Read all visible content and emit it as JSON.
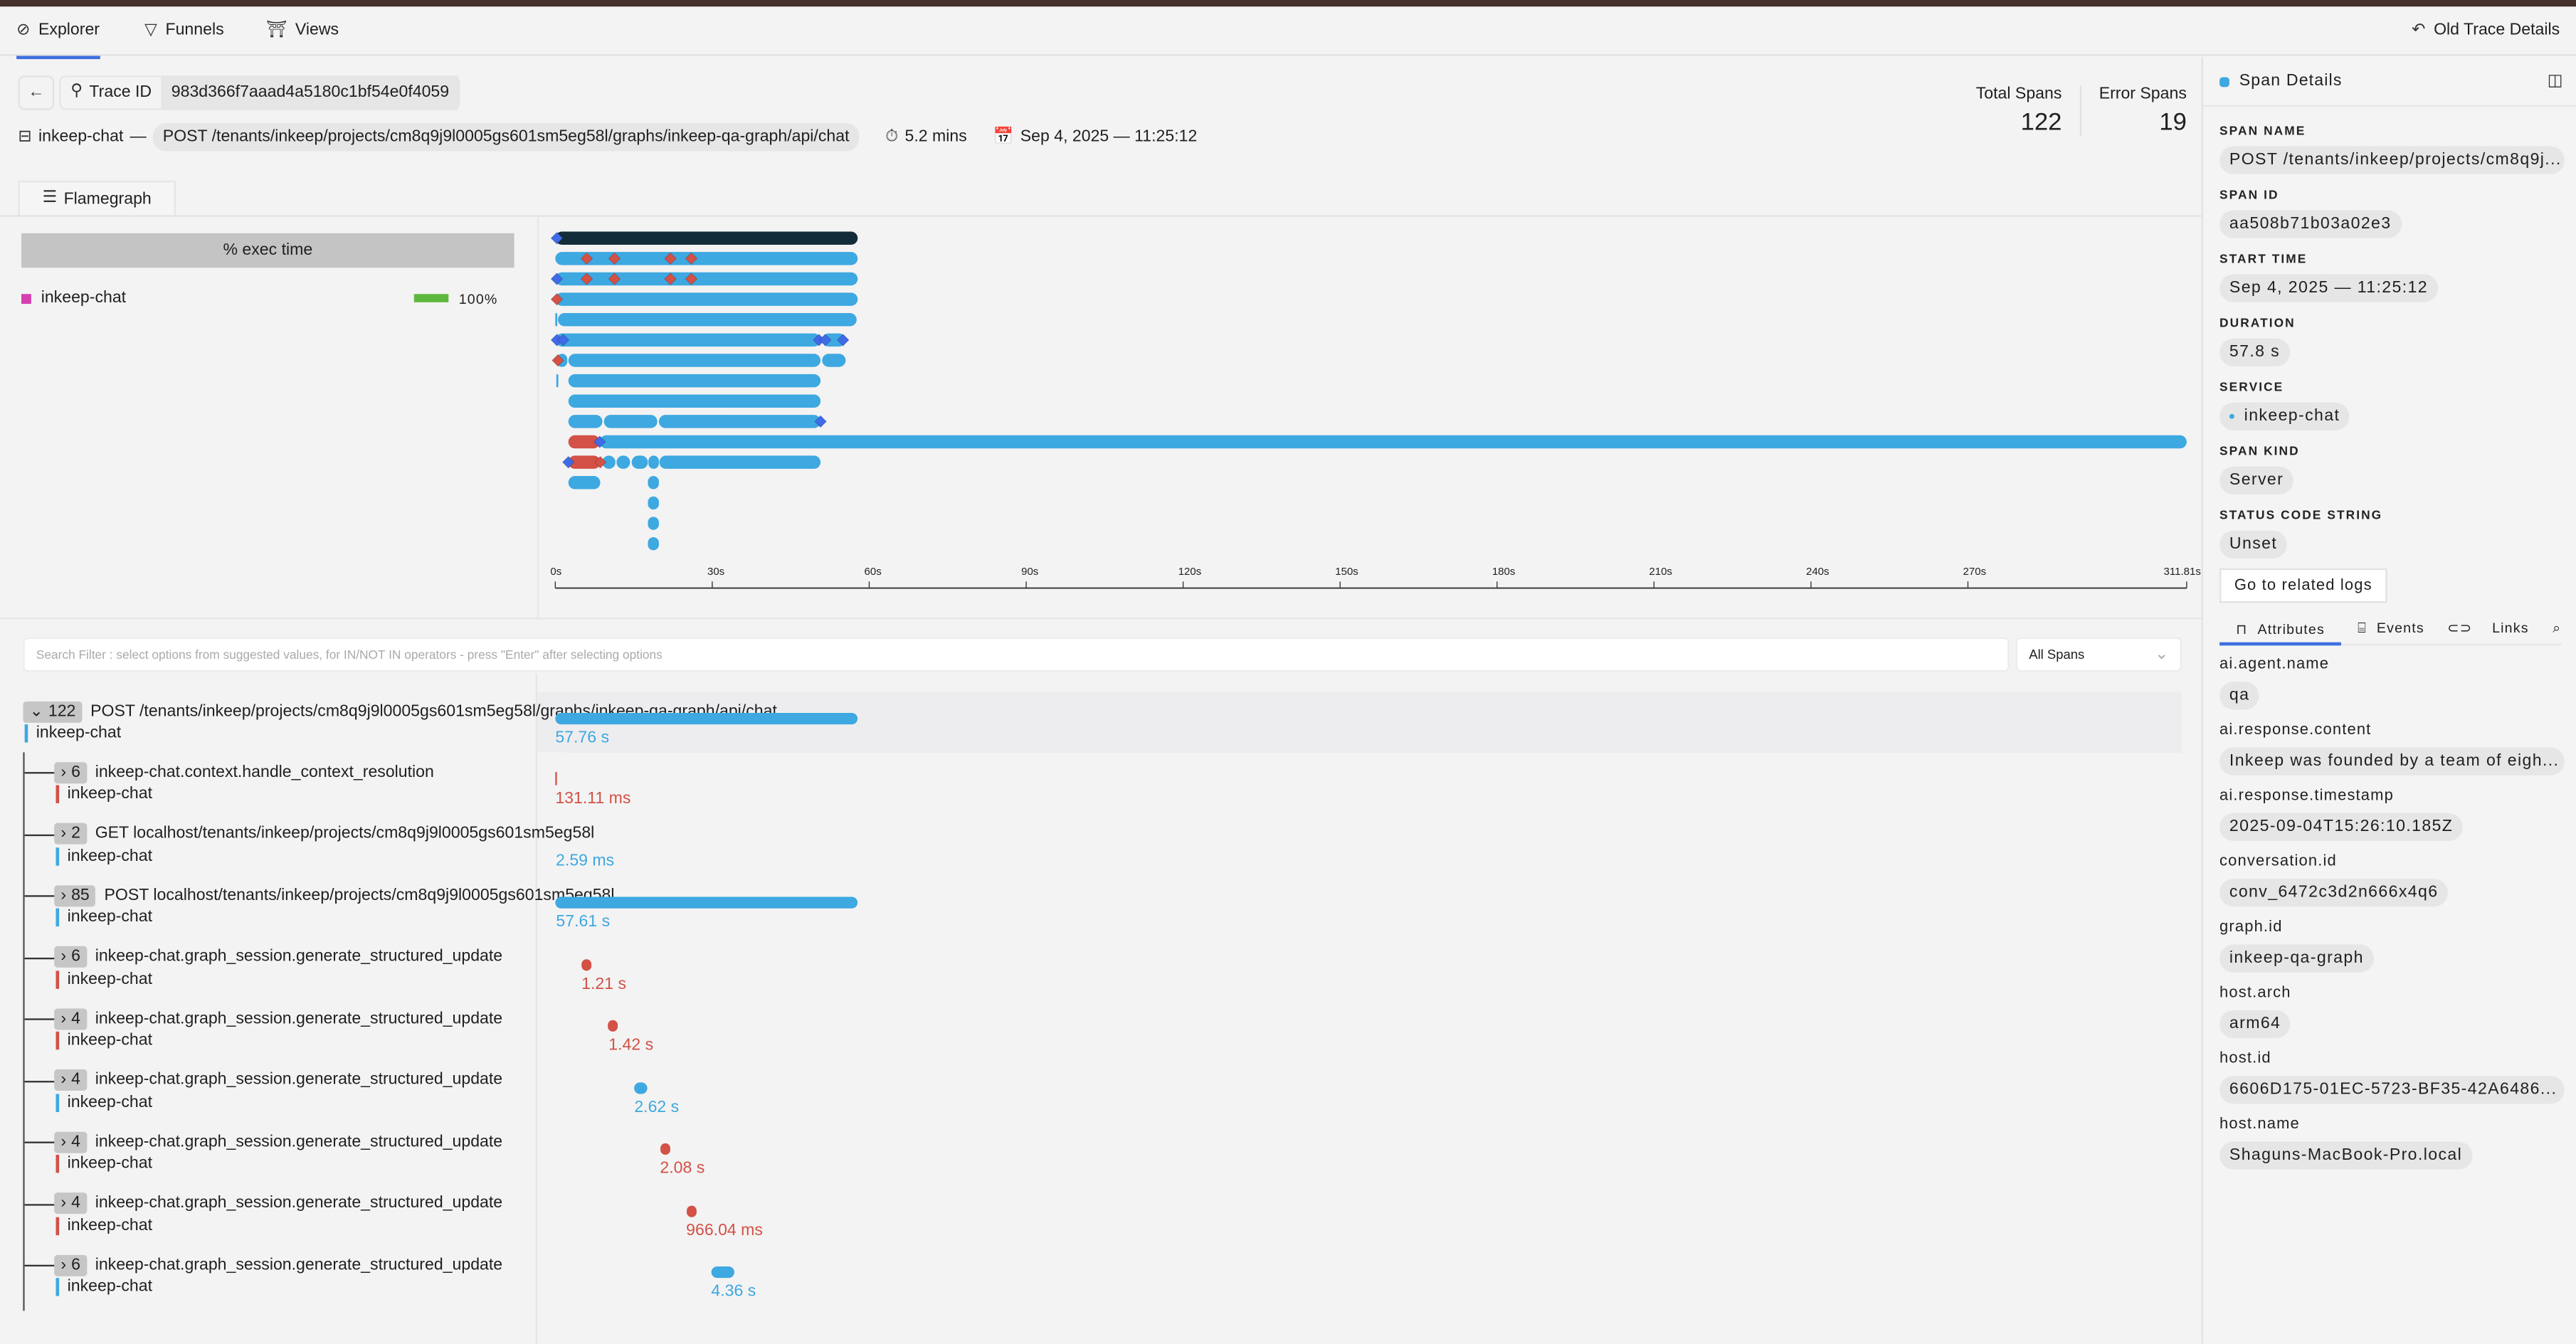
{
  "nav": {
    "tabs": [
      {
        "label": "Explorer",
        "icon": "compass-icon"
      },
      {
        "label": "Funnels",
        "icon": "funnel-icon"
      },
      {
        "label": "Views",
        "icon": "views-icon"
      }
    ],
    "old_trace": "Old Trace Details"
  },
  "trace": {
    "id_label": "Trace ID",
    "id": "983d366f7aaad4a5180c1bf54e0f4059",
    "service": "inkeep-chat",
    "separator": "—",
    "endpoint": "POST /tenants/inkeep/projects/cm8q9j9l0005gs601sm5eg58l/graphs/inkeep-qa-graph/api/chat",
    "duration": "5.2 mins",
    "timestamp": "Sep 4, 2025 — 11:25:12"
  },
  "stats": {
    "total_label": "Total Spans",
    "total": "122",
    "error_label": "Error Spans",
    "error": "19"
  },
  "flame_tab": "Flamegraph",
  "exec": {
    "header": "% exec time",
    "service": "inkeep-chat",
    "percent": "100%",
    "fraction": 1.0,
    "service_color": "#d63fb0",
    "bar_color": "#5cb83c"
  },
  "colors": {
    "blue": "#3ea8e0",
    "red": "#d35146",
    "dark": "#132c3a",
    "accent": "#3f6fe0",
    "event_blue": "#3f6ae8"
  },
  "flamegraph": {
    "x_unit": "s",
    "xlim": [
      0,
      311.81
    ],
    "ticks": [
      "0s",
      "30s",
      "60s",
      "90s",
      "120s",
      "150s",
      "180s",
      "210s",
      "240s",
      "270s",
      "311.81s"
    ],
    "tick_values": [
      0,
      30,
      60,
      90,
      120,
      150,
      180,
      210,
      240,
      270,
      311.81
    ],
    "rows": [
      {
        "bars": [
          {
            "s": 0,
            "e": 57.8,
            "c": "dark"
          }
        ],
        "events": [
          {
            "t": 0.3,
            "c": "event_blue"
          }
        ]
      },
      {
        "bars": [
          {
            "s": 0,
            "e": 57.8,
            "c": "blue"
          }
        ],
        "events": [
          {
            "t": 6,
            "c": "red"
          },
          {
            "t": 11.3,
            "c": "red"
          },
          {
            "t": 22,
            "c": "red"
          },
          {
            "t": 26,
            "c": "red"
          }
        ]
      },
      {
        "bars": [
          {
            "s": 0,
            "e": 57.8,
            "c": "blue"
          }
        ],
        "events": [
          {
            "t": 0.3,
            "c": "event_blue"
          },
          {
            "t": 6,
            "c": "red"
          },
          {
            "t": 11.3,
            "c": "red"
          },
          {
            "t": 22,
            "c": "red"
          },
          {
            "t": 26,
            "c": "red"
          }
        ]
      },
      {
        "bars": [
          {
            "s": 0,
            "e": 57.8,
            "c": "blue"
          }
        ],
        "events": [
          {
            "t": 0.3,
            "c": "red"
          }
        ]
      },
      {
        "bars": [
          {
            "s": 0,
            "e": 0.3,
            "c": "blue"
          },
          {
            "s": 0.5,
            "e": 57.6,
            "c": "blue"
          }
        ],
        "events": []
      },
      {
        "bars": [
          {
            "s": 0,
            "e": 50.7,
            "c": "blue"
          },
          {
            "s": 51,
            "e": 55.5,
            "c": "blue"
          }
        ],
        "events": [
          {
            "t": 0.3,
            "c": "event_blue"
          },
          {
            "t": 1.5,
            "c": "event_blue"
          },
          {
            "t": 50.4,
            "c": "event_blue"
          },
          {
            "t": 51.6,
            "c": "event_blue"
          },
          {
            "t": 55,
            "c": "event_blue"
          }
        ]
      },
      {
        "bars": [
          {
            "s": 0.3,
            "e": 2.3,
            "c": "blue"
          },
          {
            "s": 2.5,
            "e": 50.7,
            "c": "blue"
          },
          {
            "s": 51,
            "e": 55.5,
            "c": "blue"
          }
        ],
        "events": [
          {
            "t": 0.5,
            "c": "red"
          }
        ]
      },
      {
        "bars": [
          {
            "s": 0.2,
            "e": 0.5,
            "c": "blue"
          },
          {
            "s": 2.5,
            "e": 50.7,
            "c": "blue"
          }
        ],
        "events": []
      },
      {
        "bars": [
          {
            "s": 2.5,
            "e": 50.7,
            "c": "blue"
          }
        ],
        "events": []
      },
      {
        "bars": [
          {
            "s": 2.5,
            "e": 9,
            "c": "blue"
          },
          {
            "s": 9.3,
            "e": 19.5,
            "c": "blue"
          },
          {
            "s": 19.8,
            "e": 50.7,
            "c": "blue"
          }
        ],
        "events": [
          {
            "t": 50.7,
            "c": "event_blue"
          }
        ]
      },
      {
        "bars": [
          {
            "s": 8.5,
            "e": 311.81,
            "c": "blue"
          },
          {
            "s": 2.5,
            "e": 8.5,
            "c": "red"
          }
        ],
        "events": [
          {
            "t": 8.5,
            "c": "event_blue"
          }
        ]
      },
      {
        "bars": [
          {
            "s": 2.5,
            "e": 8.6,
            "c": "red"
          },
          {
            "s": 9,
            "e": 11.5,
            "c": "blue"
          },
          {
            "s": 11.7,
            "e": 14.3,
            "c": "blue"
          },
          {
            "s": 14.6,
            "e": 17.7,
            "c": "blue"
          },
          {
            "s": 17.8,
            "e": 19.8,
            "c": "blue"
          },
          {
            "s": 19.9,
            "e": 50.7,
            "c": "blue"
          }
        ],
        "events": [
          {
            "t": 2.5,
            "c": "event_blue"
          },
          {
            "t": 8.6,
            "c": "red"
          }
        ]
      },
      {
        "bars": [
          {
            "s": 2.5,
            "e": 8.6,
            "c": "blue"
          },
          {
            "s": 17.7,
            "e": 19.8,
            "c": "blue"
          }
        ],
        "events": []
      },
      {
        "bars": [
          {
            "s": 17.7,
            "e": 19.8,
            "c": "blue"
          }
        ],
        "events": []
      },
      {
        "bars": [
          {
            "s": 17.7,
            "e": 19.8,
            "c": "blue"
          }
        ],
        "events": []
      },
      {
        "bars": [
          {
            "s": 17.7,
            "e": 19.8,
            "c": "blue"
          }
        ],
        "events": []
      }
    ]
  },
  "filter": {
    "placeholder": "Search Filter : select options from suggested values, for IN/NOT IN operators - press \"Enter\" after selecting options",
    "select": "All Spans"
  },
  "tree": [
    {
      "count": "122",
      "expanded": true,
      "name": "POST /tenants/inkeep/projects/cm8q9j9l0005gs601sm5eg58l/graphs/inkeep-qa-graph/api/chat",
      "service": "inkeep-chat",
      "status": "blue",
      "duration": "57.76 s",
      "start": 0,
      "end": 57.76
    },
    {
      "count": "6",
      "name": "inkeep-chat.context.handle_context_resolution",
      "service": "inkeep-chat",
      "status": "red",
      "duration": "131.11 ms",
      "start": 0,
      "end": 0.13
    },
    {
      "count": "2",
      "name": "GET localhost/tenants/inkeep/projects/cm8q9j9l0005gs601sm5eg58l",
      "service": "inkeep-chat",
      "status": "blue",
      "duration": "2.59 ms",
      "start": 0.1,
      "end": 0.1
    },
    {
      "count": "85",
      "name": "POST localhost/tenants/inkeep/projects/cm8q9j9l0005gs601sm5eg58l",
      "service": "inkeep-chat",
      "status": "blue",
      "duration": "57.61 s",
      "start": 0.15,
      "end": 57.76
    },
    {
      "count": "6",
      "name": "inkeep-chat.graph_session.generate_structured_update",
      "service": "inkeep-chat",
      "status": "red",
      "duration": "1.21 s",
      "start": 5,
      "end": 6.2
    },
    {
      "count": "4",
      "name": "inkeep-chat.graph_session.generate_structured_update",
      "service": "inkeep-chat",
      "status": "red",
      "duration": "1.42 s",
      "start": 10.2,
      "end": 11.6
    },
    {
      "count": "4",
      "name": "inkeep-chat.graph_session.generate_structured_update",
      "service": "inkeep-chat",
      "status": "blue",
      "duration": "2.62 s",
      "start": 15.1,
      "end": 17.7
    },
    {
      "count": "4",
      "name": "inkeep-chat.graph_session.generate_structured_update",
      "service": "inkeep-chat",
      "status": "red",
      "duration": "2.08 s",
      "start": 20,
      "end": 22.1
    },
    {
      "count": "4",
      "name": "inkeep-chat.graph_session.generate_structured_update",
      "service": "inkeep-chat",
      "status": "red",
      "duration": "966.04 ms",
      "start": 25,
      "end": 26
    },
    {
      "count": "6",
      "name": "inkeep-chat.graph_session.generate_structured_update",
      "service": "inkeep-chat",
      "status": "blue",
      "duration": "4.36 s",
      "start": 29.8,
      "end": 34.2
    }
  ],
  "details": {
    "title": "Span Details",
    "fields": [
      {
        "label": "SPAN NAME",
        "value": "POST /tenants/inkeep/projects/cm8q9j..."
      },
      {
        "label": "SPAN ID",
        "value": "aa508b71b03a02e3"
      },
      {
        "label": "START TIME",
        "value": "Sep 4, 2025 — 11:25:12"
      },
      {
        "label": "DURATION",
        "value": "57.8 s"
      },
      {
        "label": "SERVICE",
        "value": "inkeep-chat"
      },
      {
        "label": "SPAN KIND",
        "value": "Server"
      },
      {
        "label": "STATUS CODE STRING",
        "value": "Unset"
      }
    ],
    "logs_button": "Go to related logs",
    "tabs": [
      "Attributes",
      "Events",
      "Links"
    ],
    "attributes": [
      {
        "key": "ai.agent.name",
        "value": "qa"
      },
      {
        "key": "ai.response.content",
        "value": "Inkeep was founded by a team of eigh..."
      },
      {
        "key": "ai.response.timestamp",
        "value": "2025-09-04T15:26:10.185Z"
      },
      {
        "key": "conversation.id",
        "value": "conv_6472c3d2n666x4q6"
      },
      {
        "key": "graph.id",
        "value": "inkeep-qa-graph"
      },
      {
        "key": "host.arch",
        "value": "arm64"
      },
      {
        "key": "host.id",
        "value": "6606D175-01EC-5723-BF35-42A6486..."
      },
      {
        "key": "host.name",
        "value": "Shaguns-MacBook-Pro.local"
      }
    ]
  }
}
